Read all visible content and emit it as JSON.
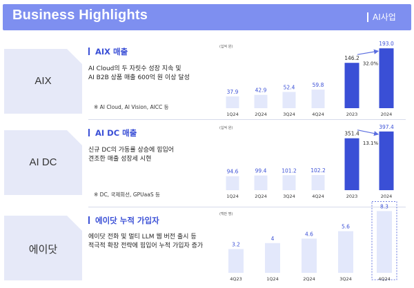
{
  "header": {
    "title": "Business Highlights",
    "section": "AI사업"
  },
  "colors": {
    "header": "#7e8ff0",
    "accent": "#3a4fd6",
    "light_bar": "#e3e8fb",
    "segment_box": "#e6e9f8"
  },
  "rows": [
    {
      "segment": "AIX",
      "title": "AIX 매출",
      "desc": "AI Cloud의 두 자릿수 성장 지속 및\nAI B2B 상품 매출 600억 원 이상 달성",
      "note": "※ AI Cloud, AI Vision, AICC 등"
    },
    {
      "segment": "AI DC",
      "title": "AI DC 매출",
      "desc": "신규 DC의 가동률 상승에 힘입어\n견조한 매출 성장세 시현",
      "note": "※ DC, 국제회선, GPUaaS 등"
    },
    {
      "segment": "에이닷",
      "title": "에이닷 누적 가입자",
      "desc": "에이닷 전화 및 멀티 LLM 웹 버전 출시 등\n적극적 확장 전략에 힘입어 누적 가입자 증가",
      "note": ""
    }
  ],
  "chart_data": [
    {
      "type": "bar",
      "title": "AIX 매출",
      "unit": "(십억 원)",
      "categories": [
        "1Q24",
        "2Q24",
        "3Q24",
        "4Q24"
      ],
      "values": [
        37.9,
        42.9,
        52.4,
        59.8
      ],
      "color": "#e3e8fb"
    },
    {
      "type": "bar",
      "title": "AIX 매출",
      "unit": "",
      "categories": [
        "2023",
        "2024"
      ],
      "values": [
        146.2,
        193.0
      ],
      "value_labels": [
        "146.2",
        "193.0"
      ],
      "color": "#3a4fd6",
      "annotation": "32.0%"
    },
    {
      "type": "bar",
      "title": "AI DC 매출",
      "unit": "(십억 원)",
      "categories": [
        "1Q24",
        "2Q24",
        "3Q24",
        "4Q24"
      ],
      "values": [
        94.6,
        99.4,
        101.2,
        102.2
      ],
      "color": "#e3e8fb"
    },
    {
      "type": "bar",
      "title": "AI DC 매출",
      "unit": "",
      "categories": [
        "2023",
        "2024"
      ],
      "values": [
        351.4,
        397.4
      ],
      "color": "#3a4fd6",
      "annotation": "13.1%"
    },
    {
      "type": "bar",
      "title": "에이닷 누적 가입자",
      "unit": "(백만 명)",
      "categories": [
        "4Q23",
        "1Q24",
        "2Q24",
        "3Q24",
        "4Q24"
      ],
      "values": [
        3.2,
        4.0,
        4.6,
        5.6,
        8.3
      ],
      "color": "#e3e8fb",
      "highlight": "4Q24"
    }
  ]
}
